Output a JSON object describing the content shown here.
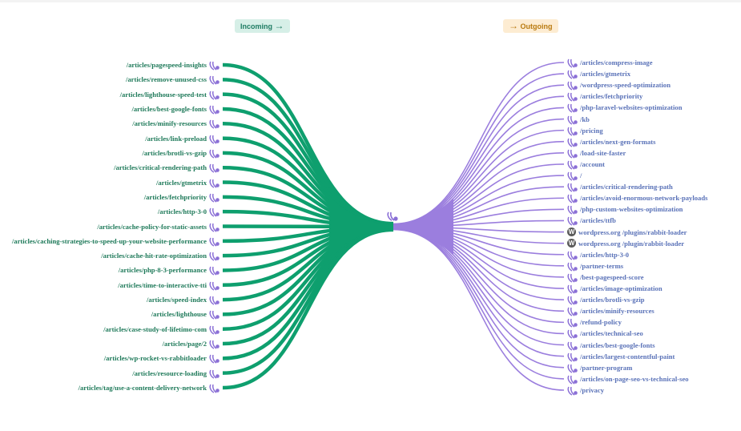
{
  "header": {
    "incoming_label": "Incoming",
    "incoming_arrow": "→",
    "outgoing_label": "Outgoing",
    "outgoing_arrow": "→"
  },
  "colors": {
    "incoming": "#0e9f6e",
    "outgoing": "#9b7ede",
    "incoming_text": "#1f7a5a",
    "outgoing_text": "#5a72b8",
    "rabbit_icon": "#8a6fd6"
  },
  "center_node": {
    "icon": "rabbit-icon"
  },
  "incoming": [
    {
      "label": "/articles/pagespeed-insights",
      "icon": "rabbit-icon"
    },
    {
      "label": "/articles/remove-unused-css",
      "icon": "rabbit-icon"
    },
    {
      "label": "/articles/lighthouse-speed-test",
      "icon": "rabbit-icon"
    },
    {
      "label": "/articles/best-google-fonts",
      "icon": "rabbit-icon"
    },
    {
      "label": "/articles/minify-resources",
      "icon": "rabbit-icon"
    },
    {
      "label": "/articles/link-preload",
      "icon": "rabbit-icon"
    },
    {
      "label": "/articles/brotli-vs-gzip",
      "icon": "rabbit-icon"
    },
    {
      "label": "/articles/critical-rendering-path",
      "icon": "rabbit-icon"
    },
    {
      "label": "/articles/gtmetrix",
      "icon": "rabbit-icon"
    },
    {
      "label": "/articles/fetchpriority",
      "icon": "rabbit-icon"
    },
    {
      "label": "/articles/http-3-0",
      "icon": "rabbit-icon"
    },
    {
      "label": "/articles/cache-policy-for-static-assets",
      "icon": "rabbit-icon"
    },
    {
      "label": "/articles/caching-strategies-to-speed-up-your-website-performance",
      "icon": "rabbit-icon"
    },
    {
      "label": "/articles/cache-hit-rate-optimization",
      "icon": "rabbit-icon"
    },
    {
      "label": "/articles/php-8-3-performance",
      "icon": "rabbit-icon"
    },
    {
      "label": "/articles/time-to-interactive-tti",
      "icon": "rabbit-icon"
    },
    {
      "label": "/articles/speed-index",
      "icon": "rabbit-icon"
    },
    {
      "label": "/articles/lighthouse",
      "icon": "rabbit-icon"
    },
    {
      "label": "/articles/case-study-of-lifetimo-com",
      "icon": "rabbit-icon"
    },
    {
      "label": "/articles/page/2",
      "icon": "rabbit-icon"
    },
    {
      "label": "/articles/wp-rocket-vs-rabbitloader",
      "icon": "rabbit-icon"
    },
    {
      "label": "/articles/resource-loading",
      "icon": "rabbit-icon"
    },
    {
      "label": "/articles/tag/use-a-content-delivery-network",
      "icon": "rabbit-icon"
    }
  ],
  "outgoing": [
    {
      "label": "/articles/compress-image",
      "icon": "rabbit-icon"
    },
    {
      "label": "/articles/gtmetrix",
      "icon": "rabbit-icon"
    },
    {
      "label": "/wordpress-speed-optimization",
      "icon": "rabbit-icon"
    },
    {
      "label": "/articles/fetchpriority",
      "icon": "rabbit-icon"
    },
    {
      "label": "/php-laravel-websites-optimization",
      "icon": "rabbit-icon"
    },
    {
      "label": "/kb",
      "icon": "rabbit-icon"
    },
    {
      "label": "/pricing",
      "icon": "rabbit-icon"
    },
    {
      "label": "/articles/next-gen-formats",
      "icon": "rabbit-icon"
    },
    {
      "label": "/load-site-faster",
      "icon": "rabbit-icon"
    },
    {
      "label": "/account",
      "icon": "rabbit-icon"
    },
    {
      "label": "/",
      "icon": "rabbit-icon"
    },
    {
      "label": "/articles/critical-rendering-path",
      "icon": "rabbit-icon"
    },
    {
      "label": "/articles/avoid-enormous-network-payloads",
      "icon": "rabbit-icon"
    },
    {
      "label": "/php-custom-websites-optimization",
      "icon": "rabbit-icon"
    },
    {
      "label": "/articles/ttfb",
      "icon": "rabbit-icon"
    },
    {
      "label": "wordpress.org /plugins/rabbit-loader",
      "icon": "wordpress-icon"
    },
    {
      "label": "wordpress.org /plugin/rabbit-loader",
      "icon": "wordpress-icon"
    },
    {
      "label": "/articles/http-3-0",
      "icon": "rabbit-icon"
    },
    {
      "label": "/partner-terms",
      "icon": "rabbit-icon"
    },
    {
      "label": "/best-pagespeed-score",
      "icon": "rabbit-icon"
    },
    {
      "label": "/articles/image-optimization",
      "icon": "rabbit-icon"
    },
    {
      "label": "/articles/brotli-vs-gzip",
      "icon": "rabbit-icon"
    },
    {
      "label": "/articles/minify-resources",
      "icon": "rabbit-icon"
    },
    {
      "label": "/refund-policy",
      "icon": "rabbit-icon"
    },
    {
      "label": "/articles/technical-seo",
      "icon": "rabbit-icon"
    },
    {
      "label": "/articles/best-google-fonts",
      "icon": "rabbit-icon"
    },
    {
      "label": "/articles/largest-contentful-paint",
      "icon": "rabbit-icon"
    },
    {
      "label": "/partner-program",
      "icon": "rabbit-icon"
    },
    {
      "label": "/articles/on-page-seo-vs-technical-seo",
      "icon": "rabbit-icon"
    },
    {
      "label": "/privacy",
      "icon": "rabbit-icon"
    }
  ]
}
